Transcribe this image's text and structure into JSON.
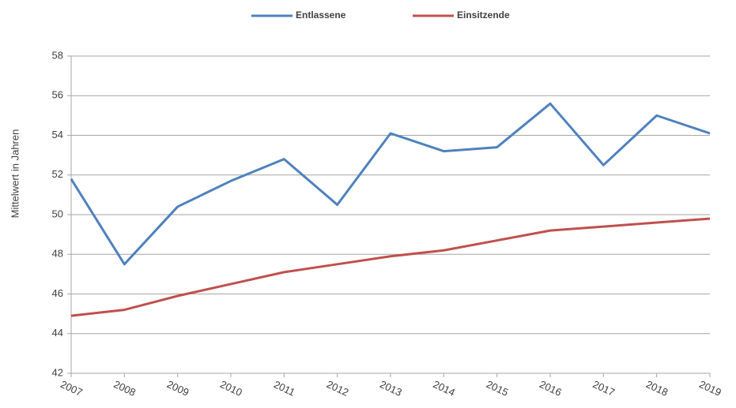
{
  "chart_data": {
    "type": "line",
    "y_label": "Mittelwert in Jahren",
    "categories": [
      "2007",
      "2008",
      "2009",
      "2010",
      "2011",
      "2012",
      "2013",
      "2014",
      "2015",
      "2016",
      "2017",
      "2018",
      "2019"
    ],
    "series": [
      {
        "name": "Entlassene",
        "color": "#4f81bd",
        "values": [
          51.8,
          47.5,
          50.4,
          51.7,
          52.8,
          50.5,
          54.1,
          53.2,
          53.4,
          55.6,
          52.5,
          55.0,
          54.1
        ]
      },
      {
        "name": "Einsitzende",
        "color": "#c0504d",
        "values": [
          44.9,
          45.2,
          45.9,
          46.5,
          47.1,
          47.5,
          47.9,
          48.2,
          48.7,
          49.2,
          49.4,
          49.6,
          49.8
        ]
      }
    ],
    "ylim": [
      42,
      58
    ],
    "yticks": [
      42,
      44,
      46,
      48,
      50,
      52,
      54,
      56,
      58
    ],
    "grid": true,
    "legend": "top"
  }
}
